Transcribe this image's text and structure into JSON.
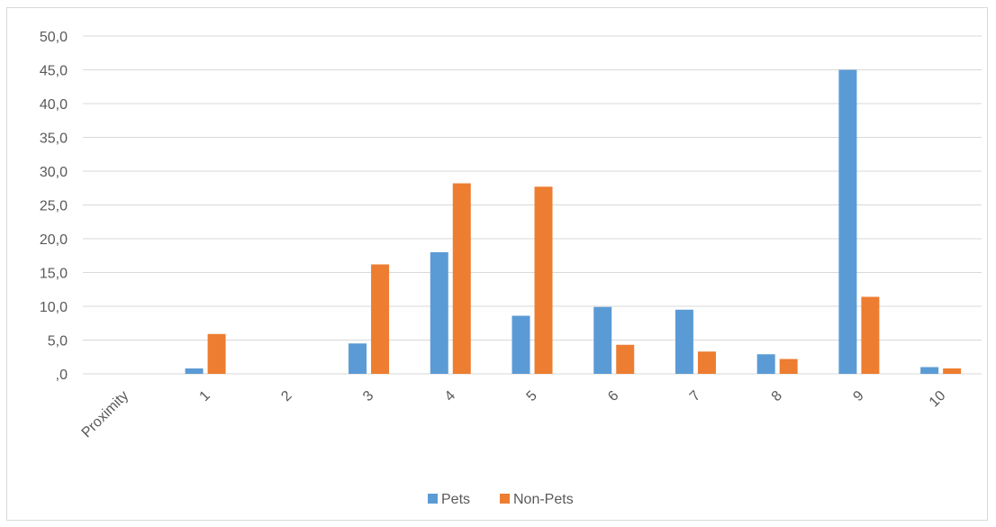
{
  "chart_data": {
    "type": "bar",
    "categories": [
      "Proximity",
      "1",
      "2",
      "3",
      "4",
      "5",
      "6",
      "7",
      "8",
      "9",
      "10"
    ],
    "series": [
      {
        "name": "Pets",
        "color": "#5b9bd5",
        "values": [
          0,
          0.8,
          0,
          4.5,
          18.0,
          8.6,
          9.9,
          9.5,
          2.9,
          45.0,
          1.0
        ]
      },
      {
        "name": "Non-Pets",
        "color": "#ed7d31",
        "values": [
          0,
          5.9,
          0,
          16.2,
          28.2,
          27.7,
          4.3,
          3.3,
          2.2,
          11.4,
          0.8
        ]
      }
    ],
    "ylim": [
      0,
      50
    ],
    "yticks": [
      0,
      5,
      10,
      15,
      20,
      25,
      30,
      35,
      40,
      45,
      50
    ],
    "ytick_labels": [
      ",0",
      "5,0",
      "10,0",
      "15,0",
      "20,0",
      "25,0",
      "30,0",
      "35,0",
      "40,0",
      "45,0",
      "50,0"
    ],
    "grid": true,
    "legend_position": "bottom",
    "title": "",
    "xlabel": "",
    "ylabel": ""
  }
}
